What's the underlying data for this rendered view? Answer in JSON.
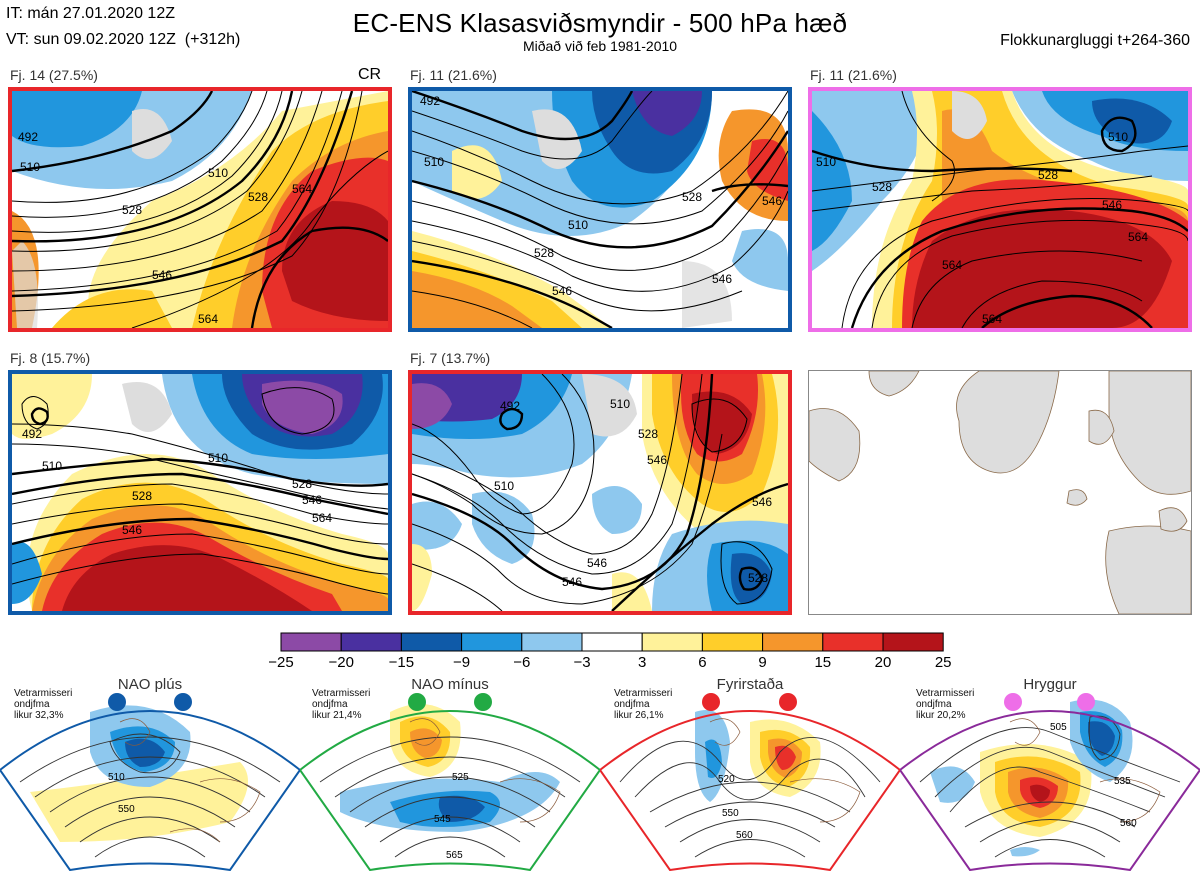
{
  "header": {
    "init_time": "IT: mán 27.01.2020 12Z",
    "valid_time": "VT: sun 09.02.2020 12Z  (+312h)",
    "title": "EC-ENS Klasasviðsmyndir - 500 hPa hæð",
    "subtitle": "Miðað við feb 1981-2010",
    "window": "Flokkunargluggi t+264-360"
  },
  "panels": [
    {
      "label": "Fj. 14 (27.5%)",
      "extra": "CR",
      "border": "#e8262a"
    },
    {
      "label": "Fj. 11 (21.6%)",
      "border": "#0f5aa8"
    },
    {
      "label": "Fj. 11 (21.6%)",
      "border": "#ee6ee8"
    },
    {
      "label": "Fj. 8 (15.7%)",
      "border": "#0f5aa8"
    },
    {
      "label": "Fj. 7 (13.7%)",
      "border": "#e8262a"
    }
  ],
  "contours": {
    "p1": [
      "492",
      "510",
      "510",
      "528",
      "546",
      "564",
      "564",
      "528"
    ],
    "p2": [
      "492",
      "510",
      "510",
      "528",
      "528",
      "546",
      "546",
      "546"
    ],
    "p3": [
      "510",
      "510",
      "528",
      "546",
      "564",
      "564",
      "564",
      "528"
    ],
    "p4": [
      "492",
      "510",
      "510",
      "528",
      "528",
      "546",
      "546",
      "564"
    ],
    "p5": [
      "492",
      "510",
      "510",
      "528",
      "546",
      "546",
      "528",
      "546",
      "546"
    ]
  },
  "colorbar": {
    "colors": [
      "#8c4aa6",
      "#4a30a0",
      "#0f5aa8",
      "#2196dd",
      "#8ec8ee",
      "#ffffff",
      "#fff29a",
      "#ffce2a",
      "#f5962c",
      "#e8302a",
      "#b4141a"
    ],
    "ticks": [
      "−25",
      "−20",
      "−15",
      "−9",
      "−6",
      "−3",
      "3",
      "6",
      "9",
      "15",
      "20",
      "25"
    ]
  },
  "regimes": [
    {
      "title": "NAO plús",
      "note": "Vetrarmisseri\nondjfma\nlikur 32,3%",
      "color": "#0f5aa8",
      "contours": [
        "510",
        "550"
      ]
    },
    {
      "title": "NAO mínus",
      "note": "Vetrarmisseri\nondjfma\nlikur 21,4%",
      "color": "#22aa44",
      "contours": [
        "525",
        "545",
        "565"
      ]
    },
    {
      "title": "Fyrirstaða",
      "note": "Vetrarmisseri\nondjfma\nlikur 26,1%",
      "color": "#e8262a",
      "contours": [
        "520",
        "550",
        "560"
      ]
    },
    {
      "title": "Hryggur",
      "note": "Vetrarmisseri\nondjfma\nlikur 20,2%",
      "color": "#8a2a9a",
      "contours": [
        "505",
        "535",
        "560"
      ]
    }
  ]
}
